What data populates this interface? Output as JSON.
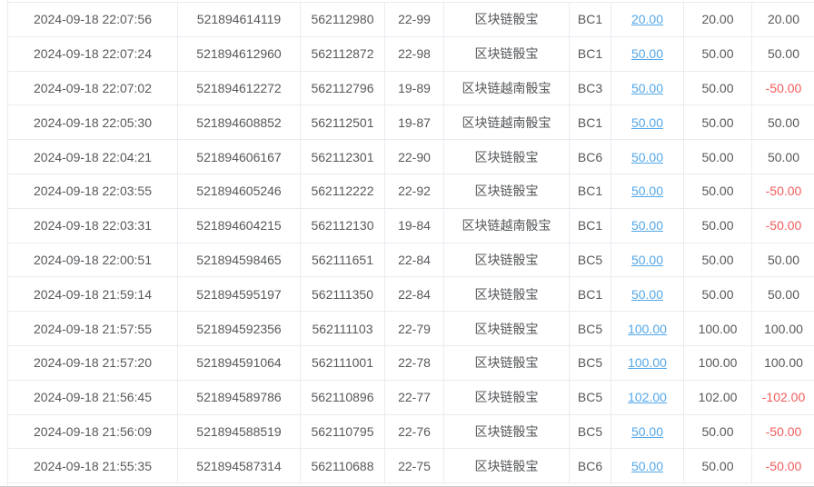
{
  "colors": {
    "link_blue": "#53a7e9",
    "negative_red": "#f25b5b",
    "text": "#56585b",
    "border": "#e9ebf0",
    "bottom_divider": "#c9c9c9"
  },
  "table": {
    "columns": [
      "bet_time",
      "order_id",
      "round_id",
      "issue",
      "game_name",
      "table_code",
      "bet_amount",
      "valid_amount",
      "win_loss"
    ],
    "rows": [
      {
        "time": "2024-09-18 22:07:56",
        "order_id": "521894614119",
        "round_id": "562112980",
        "issue": "22-99",
        "game": "区块链骰宝",
        "table": "BC1",
        "bet": "20.00",
        "valid": "20.00",
        "result": "20.00",
        "negative": false
      },
      {
        "time": "2024-09-18 22:07:24",
        "order_id": "521894612960",
        "round_id": "562112872",
        "issue": "22-98",
        "game": "区块链骰宝",
        "table": "BC1",
        "bet": "50.00",
        "valid": "50.00",
        "result": "50.00",
        "negative": false
      },
      {
        "time": "2024-09-18 22:07:02",
        "order_id": "521894612272",
        "round_id": "562112796",
        "issue": "19-89",
        "game": "区块链越南骰宝",
        "table": "BC3",
        "bet": "50.00",
        "valid": "50.00",
        "result": "-50.00",
        "negative": true
      },
      {
        "time": "2024-09-18 22:05:30",
        "order_id": "521894608852",
        "round_id": "562112501",
        "issue": "19-87",
        "game": "区块链越南骰宝",
        "table": "BC1",
        "bet": "50.00",
        "valid": "50.00",
        "result": "50.00",
        "negative": false
      },
      {
        "time": "2024-09-18 22:04:21",
        "order_id": "521894606167",
        "round_id": "562112301",
        "issue": "22-90",
        "game": "区块链骰宝",
        "table": "BC6",
        "bet": "50.00",
        "valid": "50.00",
        "result": "50.00",
        "negative": false
      },
      {
        "time": "2024-09-18 22:03:55",
        "order_id": "521894605246",
        "round_id": "562112222",
        "issue": "22-92",
        "game": "区块链骰宝",
        "table": "BC1",
        "bet": "50.00",
        "valid": "50.00",
        "result": "-50.00",
        "negative": true
      },
      {
        "time": "2024-09-18 22:03:31",
        "order_id": "521894604215",
        "round_id": "562112130",
        "issue": "19-84",
        "game": "区块链越南骰宝",
        "table": "BC1",
        "bet": "50.00",
        "valid": "50.00",
        "result": "-50.00",
        "negative": true
      },
      {
        "time": "2024-09-18 22:00:51",
        "order_id": "521894598465",
        "round_id": "562111651",
        "issue": "22-84",
        "game": "区块链骰宝",
        "table": "BC5",
        "bet": "50.00",
        "valid": "50.00",
        "result": "50.00",
        "negative": false
      },
      {
        "time": "2024-09-18 21:59:14",
        "order_id": "521894595197",
        "round_id": "562111350",
        "issue": "22-84",
        "game": "区块链骰宝",
        "table": "BC1",
        "bet": "50.00",
        "valid": "50.00",
        "result": "50.00",
        "negative": false
      },
      {
        "time": "2024-09-18 21:57:55",
        "order_id": "521894592356",
        "round_id": "562111103",
        "issue": "22-79",
        "game": "区块链骰宝",
        "table": "BC5",
        "bet": "100.00",
        "valid": "100.00",
        "result": "100.00",
        "negative": false
      },
      {
        "time": "2024-09-18 21:57:20",
        "order_id": "521894591064",
        "round_id": "562111001",
        "issue": "22-78",
        "game": "区块链骰宝",
        "table": "BC5",
        "bet": "100.00",
        "valid": "100.00",
        "result": "100.00",
        "negative": false
      },
      {
        "time": "2024-09-18 21:56:45",
        "order_id": "521894589786",
        "round_id": "562110896",
        "issue": "22-77",
        "game": "区块链骰宝",
        "table": "BC5",
        "bet": "102.00",
        "valid": "102.00",
        "result": "-102.00",
        "negative": true
      },
      {
        "time": "2024-09-18 21:56:09",
        "order_id": "521894588519",
        "round_id": "562110795",
        "issue": "22-76",
        "game": "区块链骰宝",
        "table": "BC5",
        "bet": "50.00",
        "valid": "50.00",
        "result": "-50.00",
        "negative": true
      },
      {
        "time": "2024-09-18 21:55:35",
        "order_id": "521894587314",
        "round_id": "562110688",
        "issue": "22-75",
        "game": "区块链骰宝",
        "table": "BC6",
        "bet": "50.00",
        "valid": "50.00",
        "result": "-50.00",
        "negative": true
      }
    ]
  }
}
